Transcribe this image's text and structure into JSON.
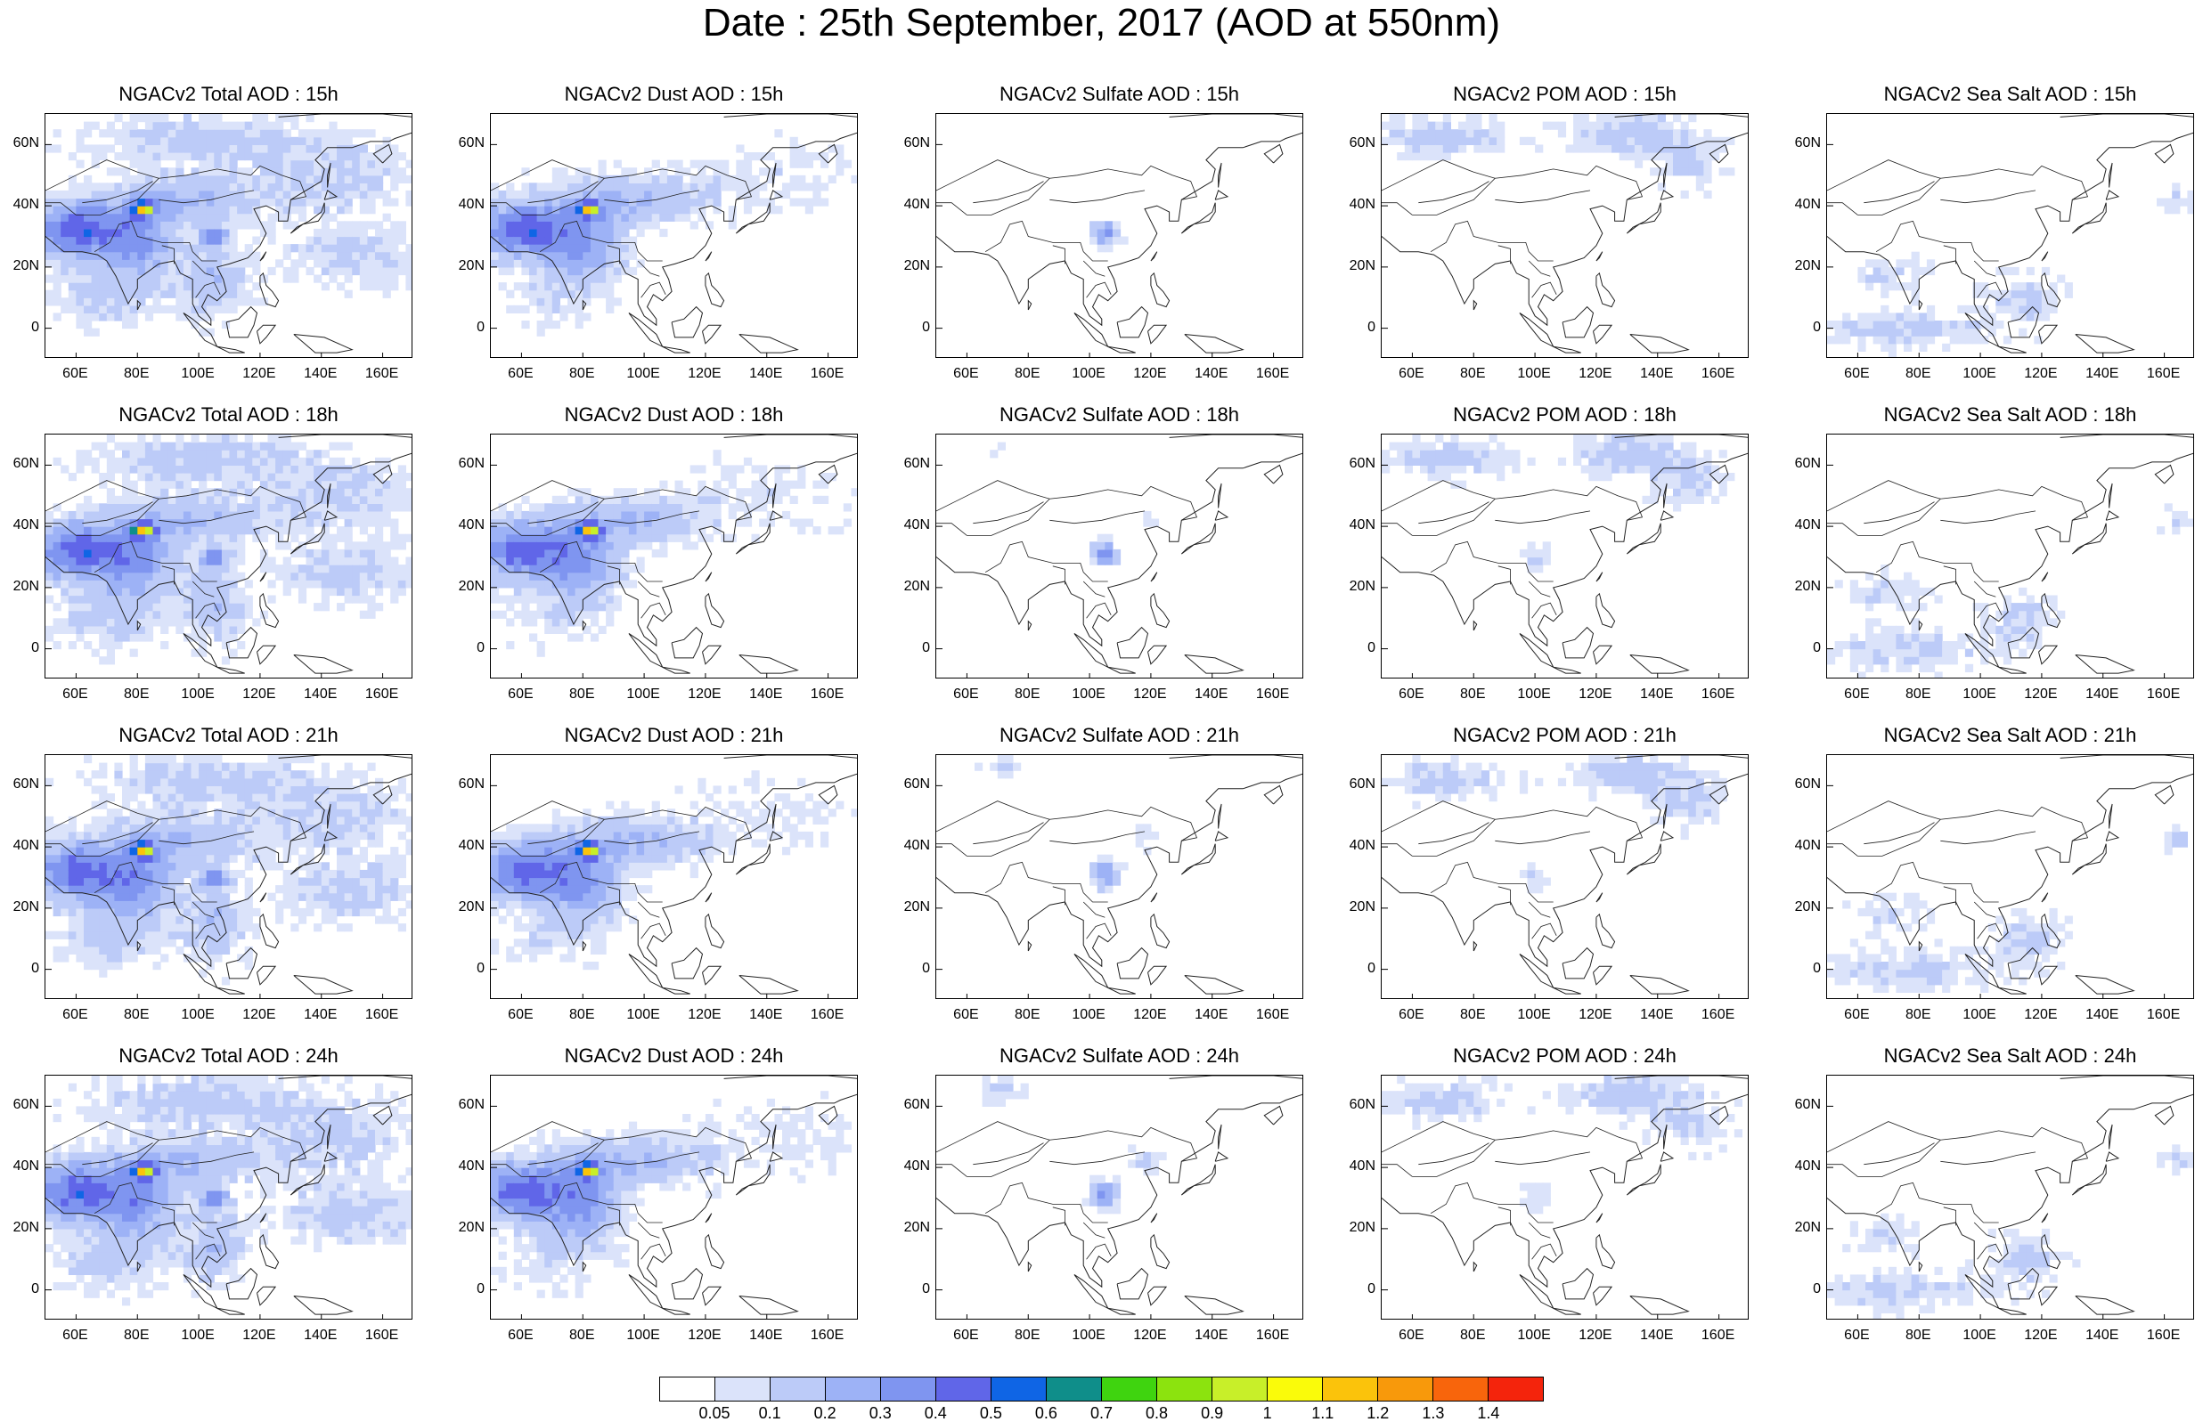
{
  "title": "Date : 25th September, 2017 (AOD at 550nm)",
  "chart_data": {
    "type": "heatmap",
    "title": "Date : 25th September, 2017 (AOD at 550nm)",
    "xticks": [
      "60E",
      "80E",
      "100E",
      "120E",
      "140E",
      "160E"
    ],
    "yticks": [
      "60N",
      "40N",
      "20N",
      "0"
    ],
    "xlim": [
      50,
      170
    ],
    "ylim": [
      -10,
      70
    ],
    "panels": [
      [
        "NGACv2 Total AOD : 15h",
        "NGACv2 Dust AOD : 15h",
        "NGACv2 Sulfate AOD : 15h",
        "NGACv2 POM AOD : 15h",
        "NGACv2 Sea Salt AOD : 15h"
      ],
      [
        "NGACv2 Total AOD : 18h",
        "NGACv2 Dust AOD : 18h",
        "NGACv2 Sulfate AOD : 18h",
        "NGACv2 POM AOD : 18h",
        "NGACv2 Sea Salt AOD : 18h"
      ],
      [
        "NGACv2 Total AOD : 21h",
        "NGACv2 Dust AOD : 21h",
        "NGACv2 Sulfate AOD : 21h",
        "NGACv2 POM AOD : 21h",
        "NGACv2 Sea Salt AOD : 21h"
      ],
      [
        "NGACv2 Total AOD : 24h",
        "NGACv2 Dust AOD : 24h",
        "NGACv2 Sulfate AOD : 24h",
        "NGACv2 POM AOD : 24h",
        "NGACv2 Sea Salt  AOD : 24h"
      ]
    ],
    "colorbar": {
      "levels": [
        "0.05",
        "0.1",
        "0.2",
        "0.3",
        "0.4",
        "0.5",
        "0.6",
        "0.7",
        "0.8",
        "0.9",
        "1",
        "1.1",
        "1.2",
        "1.3",
        "1.4"
      ],
      "colors": [
        "#ffffff",
        "#dbe3fa",
        "#bccbf8",
        "#9db2f6",
        "#7f95f0",
        "#6066e8",
        "#0f65e5",
        "#0f8e8a",
        "#3fd40f",
        "#8ce30e",
        "#c8ef29",
        "#fafb0a",
        "#fbc30b",
        "#f8990b",
        "#f8650c",
        "#f4240c"
      ]
    }
  }
}
